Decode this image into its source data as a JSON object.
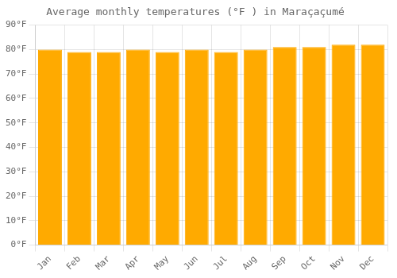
{
  "chart_data": {
    "type": "bar",
    "title": "Average monthly temperatures (°F ) in Maraçaçumé",
    "categories": [
      "Jan",
      "Feb",
      "Mar",
      "Apr",
      "May",
      "Jun",
      "Jul",
      "Aug",
      "Sep",
      "Oct",
      "Nov",
      "Dec"
    ],
    "values": [
      80,
      79,
      79,
      80,
      79,
      80,
      79,
      80,
      81,
      81,
      82,
      82
    ],
    "color": "#FFAA00",
    "ylim": [
      0,
      90
    ],
    "yticks": [
      {
        "value": 0,
        "label": "0°F"
      },
      {
        "value": 10,
        "label": "10°F"
      },
      {
        "value": 20,
        "label": "20°F"
      },
      {
        "value": 30,
        "label": "30°F"
      },
      {
        "value": 40,
        "label": "40°F"
      },
      {
        "value": 50,
        "label": "50°F"
      },
      {
        "value": 60,
        "label": "60°F"
      },
      {
        "value": 70,
        "label": "70°F"
      },
      {
        "value": 80,
        "label": "80°F"
      },
      {
        "value": 90,
        "label": "90°F"
      }
    ],
    "grid": true
  }
}
